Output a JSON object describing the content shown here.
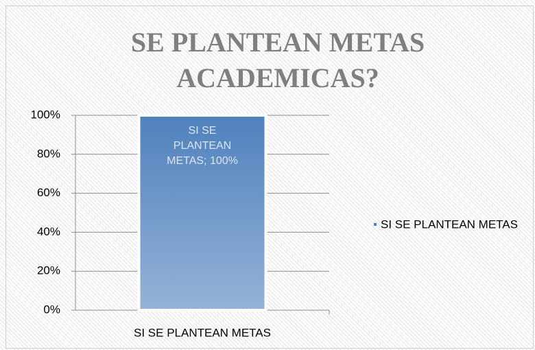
{
  "chart_data": {
    "type": "bar",
    "title": "SE PLANTEAN METAS ACADEMICAS?",
    "categories": [
      "SI SE PLANTEAN METAS"
    ],
    "series": [
      {
        "name": "SI SE PLANTEAN METAS",
        "color": "#4f81bd",
        "values": [
          100
        ],
        "value_labels": [
          "SI SE PLANTEAN METAS; 100%"
        ]
      }
    ],
    "ylim": [
      0,
      100
    ],
    "yticks": [
      {
        "value": 0,
        "label": "0%"
      },
      {
        "value": 20,
        "label": "20%"
      },
      {
        "value": 40,
        "label": "40%"
      },
      {
        "value": 60,
        "label": "60%"
      },
      {
        "value": 80,
        "label": "80%"
      },
      {
        "value": 100,
        "label": "100%"
      }
    ],
    "grid": true,
    "legend": "right"
  }
}
